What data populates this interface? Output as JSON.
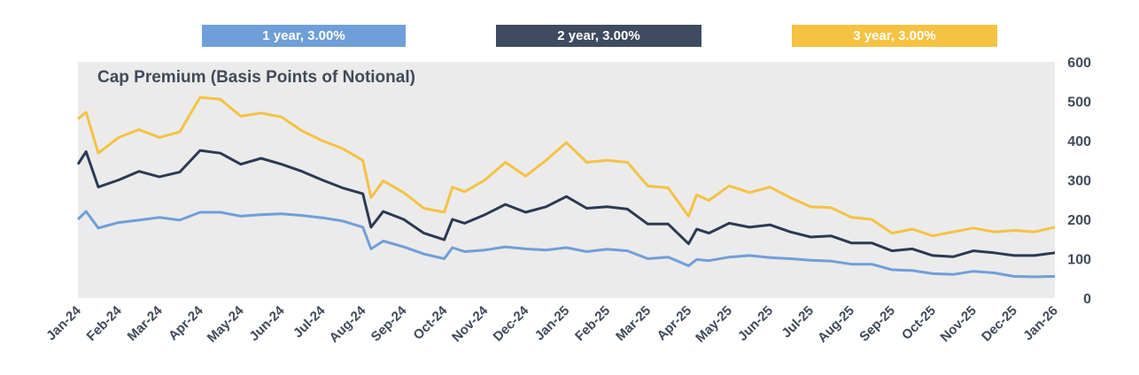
{
  "chart_data": {
    "type": "line",
    "title": "Cap Premium (Basis Points of Notional)",
    "xlabel": "",
    "ylabel": "",
    "ylim": [
      0,
      600
    ],
    "y_ticks": [
      "0",
      "100",
      "200",
      "300",
      "400",
      "500",
      "600"
    ],
    "x_ticks": [
      "Jan-24",
      "Feb-24",
      "Mar-24",
      "Apr-24",
      "May-24",
      "Jun-24",
      "Jul-24",
      "Aug-24",
      "Sep-24",
      "Oct-24",
      "Nov-24",
      "Dec-24",
      "Jan-25",
      "Feb-25",
      "Mar-25",
      "Apr-25",
      "May-25",
      "Jun-25",
      "Jul-25",
      "Aug-25",
      "Sep-25",
      "Oct-25",
      "Nov-25",
      "Dec-25",
      "Jan-26"
    ],
    "y_axis_position": "right",
    "grid": false,
    "legend_position": "top",
    "plot_background": "#ebebeb",
    "series": [
      {
        "name": "1 year, 3.00%",
        "color": "#6f9fd8",
        "points": [
          [
            0,
            200
          ],
          [
            0.2,
            220
          ],
          [
            0.5,
            178
          ],
          [
            1,
            192
          ],
          [
            1.5,
            198
          ],
          [
            2,
            205
          ],
          [
            2.5,
            198
          ],
          [
            3,
            218
          ],
          [
            3.5,
            218
          ],
          [
            4,
            208
          ],
          [
            4.5,
            212
          ],
          [
            5,
            214
          ],
          [
            5.5,
            210
          ],
          [
            6,
            204
          ],
          [
            6.5,
            196
          ],
          [
            7,
            180
          ],
          [
            7.2,
            125
          ],
          [
            7.5,
            145
          ],
          [
            8,
            130
          ],
          [
            8.5,
            112
          ],
          [
            9,
            100
          ],
          [
            9.2,
            128
          ],
          [
            9.5,
            118
          ],
          [
            10,
            122
          ],
          [
            10.5,
            130
          ],
          [
            11,
            125
          ],
          [
            11.5,
            122
          ],
          [
            12,
            128
          ],
          [
            12.5,
            118
          ],
          [
            13,
            124
          ],
          [
            13.5,
            120
          ],
          [
            14,
            100
          ],
          [
            14.5,
            104
          ],
          [
            15,
            82
          ],
          [
            15.2,
            98
          ],
          [
            15.5,
            95
          ],
          [
            16,
            104
          ],
          [
            16.5,
            108
          ],
          [
            17,
            103
          ],
          [
            17.5,
            100
          ],
          [
            18,
            96
          ],
          [
            18.5,
            94
          ],
          [
            19,
            86
          ],
          [
            19.5,
            86
          ],
          [
            20,
            72
          ],
          [
            20.5,
            70
          ],
          [
            21,
            62
          ],
          [
            21.5,
            60
          ],
          [
            22,
            68
          ],
          [
            22.5,
            64
          ],
          [
            23,
            55
          ],
          [
            23.5,
            54
          ],
          [
            24,
            55
          ]
        ]
      },
      {
        "name": "2 year, 3.00%",
        "color": "#2b3a52",
        "points": [
          [
            0,
            340
          ],
          [
            0.2,
            372
          ],
          [
            0.5,
            282
          ],
          [
            1,
            300
          ],
          [
            1.5,
            322
          ],
          [
            2,
            308
          ],
          [
            2.5,
            320
          ],
          [
            3,
            375
          ],
          [
            3.5,
            368
          ],
          [
            4,
            340
          ],
          [
            4.5,
            355
          ],
          [
            5,
            340
          ],
          [
            5.5,
            322
          ],
          [
            6,
            300
          ],
          [
            6.5,
            280
          ],
          [
            7,
            265
          ],
          [
            7.2,
            180
          ],
          [
            7.5,
            220
          ],
          [
            8,
            200
          ],
          [
            8.5,
            165
          ],
          [
            9,
            148
          ],
          [
            9.2,
            200
          ],
          [
            9.5,
            190
          ],
          [
            10,
            212
          ],
          [
            10.5,
            238
          ],
          [
            11,
            218
          ],
          [
            11.5,
            232
          ],
          [
            12,
            258
          ],
          [
            12.5,
            228
          ],
          [
            13,
            232
          ],
          [
            13.5,
            226
          ],
          [
            14,
            188
          ],
          [
            14.5,
            188
          ],
          [
            15,
            138
          ],
          [
            15.2,
            175
          ],
          [
            15.5,
            165
          ],
          [
            16,
            190
          ],
          [
            16.5,
            180
          ],
          [
            17,
            186
          ],
          [
            17.5,
            168
          ],
          [
            18,
            155
          ],
          [
            18.5,
            158
          ],
          [
            19,
            140
          ],
          [
            19.5,
            140
          ],
          [
            20,
            120
          ],
          [
            20.5,
            125
          ],
          [
            21,
            108
          ],
          [
            21.5,
            105
          ],
          [
            22,
            120
          ],
          [
            22.5,
            115
          ],
          [
            23,
            108
          ],
          [
            23.5,
            108
          ],
          [
            24,
            115
          ]
        ]
      },
      {
        "name": "3 year, 3.00%",
        "color": "#f5c242",
        "points": [
          [
            0,
            455
          ],
          [
            0.2,
            472
          ],
          [
            0.5,
            368
          ],
          [
            1,
            408
          ],
          [
            1.5,
            428
          ],
          [
            2,
            408
          ],
          [
            2.5,
            422
          ],
          [
            3,
            510
          ],
          [
            3.5,
            505
          ],
          [
            4,
            462
          ],
          [
            4.5,
            470
          ],
          [
            5,
            460
          ],
          [
            5.5,
            425
          ],
          [
            6,
            400
          ],
          [
            6.5,
            380
          ],
          [
            7,
            350
          ],
          [
            7.2,
            255
          ],
          [
            7.5,
            298
          ],
          [
            8,
            268
          ],
          [
            8.5,
            228
          ],
          [
            9,
            218
          ],
          [
            9.2,
            282
          ],
          [
            9.5,
            270
          ],
          [
            10,
            300
          ],
          [
            10.5,
            345
          ],
          [
            11,
            310
          ],
          [
            11.5,
            350
          ],
          [
            12,
            395
          ],
          [
            12.5,
            345
          ],
          [
            13,
            350
          ],
          [
            13.5,
            345
          ],
          [
            14,
            285
          ],
          [
            14.5,
            280
          ],
          [
            15,
            208
          ],
          [
            15.2,
            262
          ],
          [
            15.5,
            248
          ],
          [
            16,
            285
          ],
          [
            16.5,
            268
          ],
          [
            17,
            282
          ],
          [
            17.5,
            255
          ],
          [
            18,
            232
          ],
          [
            18.5,
            230
          ],
          [
            19,
            205
          ],
          [
            19.5,
            200
          ],
          [
            20,
            165
          ],
          [
            20.5,
            175
          ],
          [
            21,
            158
          ],
          [
            21.5,
            168
          ],
          [
            22,
            178
          ],
          [
            22.5,
            168
          ],
          [
            23,
            172
          ],
          [
            23.5,
            168
          ],
          [
            24,
            180
          ]
        ]
      }
    ]
  }
}
